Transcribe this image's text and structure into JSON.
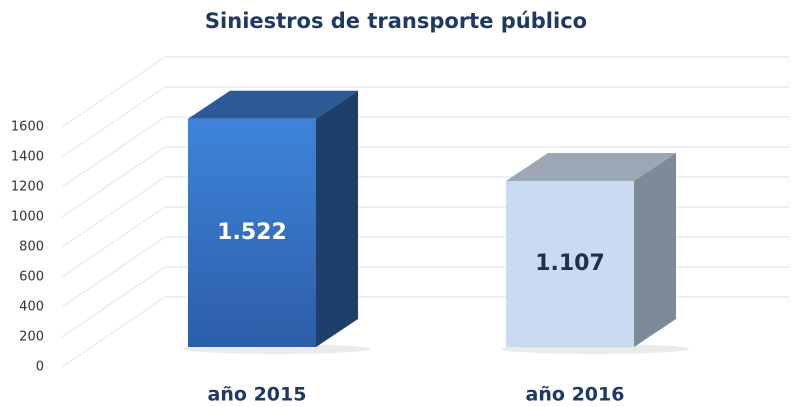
{
  "chart_data": {
    "type": "bar3d",
    "title": "Siniestros de transporte público",
    "categories": [
      "año 2015",
      "año 2016"
    ],
    "values": [
      1522,
      1107
    ],
    "value_labels": [
      "1.522",
      "1.107"
    ],
    "colors": [
      "#3a7bd0",
      "#c9daf1"
    ],
    "label_colors": [
      "#ffffff",
      "#1f2f4d"
    ],
    "ylim": [
      0,
      1800
    ],
    "yticks": [
      0,
      200,
      400,
      600,
      800,
      1000,
      1200,
      1400,
      1600
    ],
    "grid": true
  }
}
